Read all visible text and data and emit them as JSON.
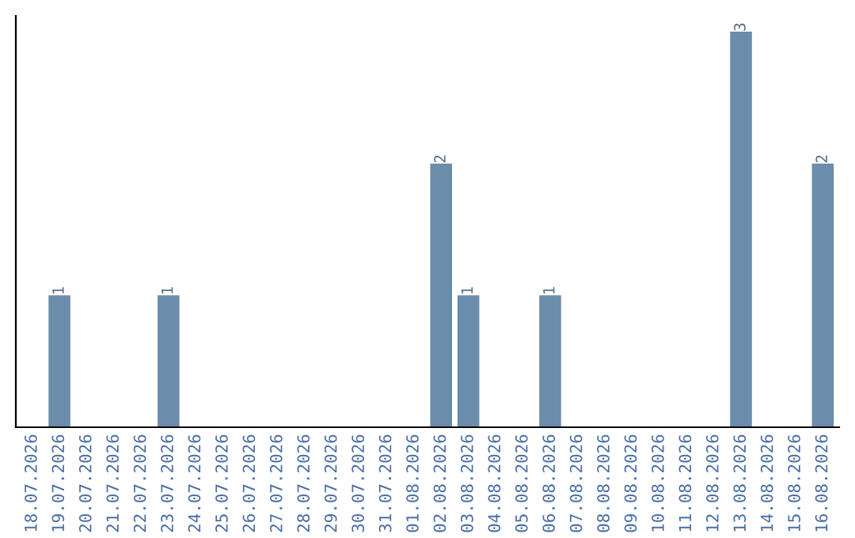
{
  "chart_data": {
    "type": "bar",
    "categories": [
      "18.07.2026",
      "19.07.2026",
      "20.07.2026",
      "21.07.2026",
      "22.07.2026",
      "23.07.2026",
      "24.07.2026",
      "25.07.2026",
      "26.07.2026",
      "27.07.2026",
      "28.07.2026",
      "29.07.2026",
      "30.07.2026",
      "31.07.2026",
      "01.08.2026",
      "02.08.2026",
      "03.08.2026",
      "04.08.2026",
      "05.08.2026",
      "06.08.2026",
      "07.08.2026",
      "08.08.2026",
      "09.08.2026",
      "10.08.2026",
      "11.08.2026",
      "12.08.2026",
      "13.08.2026",
      "14.08.2026",
      "15.08.2026",
      "16.08.2026"
    ],
    "values": [
      0,
      1,
      0,
      0,
      0,
      1,
      0,
      0,
      0,
      0,
      0,
      0,
      0,
      0,
      0,
      2,
      1,
      0,
      0,
      1,
      0,
      0,
      0,
      0,
      0,
      0,
      3,
      0,
      0,
      2
    ],
    "value_labels": [
      null,
      "1",
      null,
      null,
      null,
      "1",
      null,
      null,
      null,
      null,
      null,
      null,
      null,
      null,
      null,
      "2",
      "1",
      null,
      null,
      "1",
      null,
      null,
      null,
      null,
      null,
      null,
      "3",
      null,
      null,
      "2"
    ],
    "color": "#6b8cab",
    "tick_labels": "x",
    "grid": false,
    "legend": false
  }
}
